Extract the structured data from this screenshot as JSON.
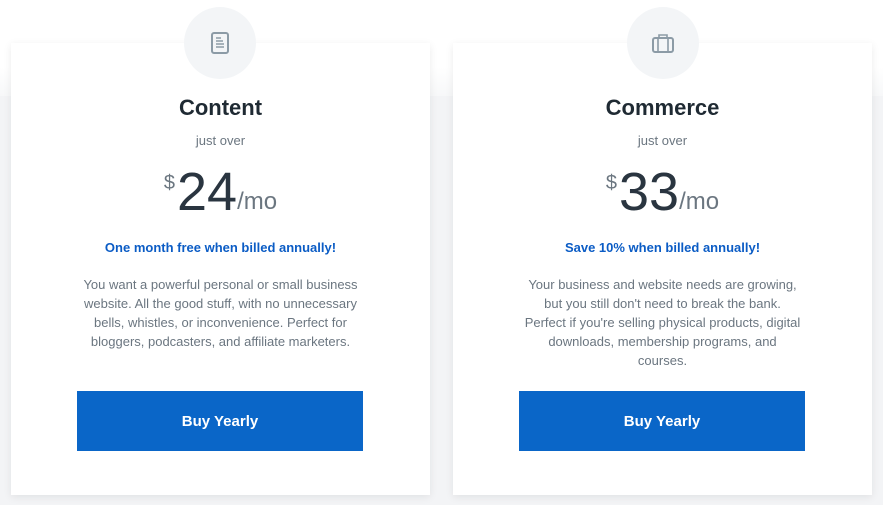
{
  "plans": [
    {
      "icon": "document-icon",
      "title": "Content",
      "subtitle": "just over",
      "currency": "$",
      "amount": "24",
      "period": "/mo",
      "promo": "One month free when billed annually!",
      "description": "You want a powerful personal or small business website. All the good stuff, with no unnecessary bells, whistles, or inconvenience. Perfect for bloggers, podcasters, and affiliate marketers.",
      "button": "Buy Yearly"
    },
    {
      "icon": "briefcase-icon",
      "title": "Commerce",
      "subtitle": "just over",
      "currency": "$",
      "amount": "33",
      "period": "/mo",
      "promo": "Save 10% when billed annually!",
      "description": "Your business and website needs are growing, but you still don't need to break the bank. Perfect if you're selling physical products, digital downloads, membership programs, and courses.",
      "button": "Buy Yearly"
    }
  ],
  "colors": {
    "accent": "#0a66c8",
    "promo": "#0b5cc5"
  }
}
